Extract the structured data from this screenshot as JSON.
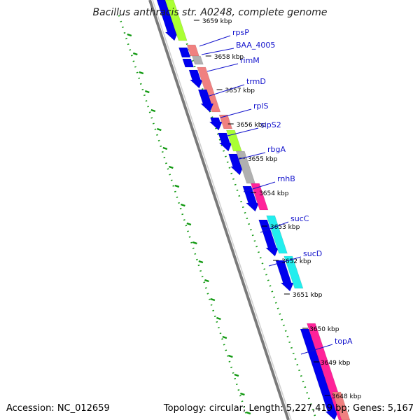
{
  "title": "Bacillus anthracis str. A0248, complete genome",
  "footer": {
    "accession": "Accession: NC_012659",
    "stats": "Topology: circular; Length: 5,227,419 bp; Genes: 5,167"
  },
  "colors": {
    "backbone": "#8c8c8c",
    "cds_reverse": "#0000ee",
    "rna": "#f08080",
    "pseudo": "#b0b0b0",
    "green_feature": "#aaff33",
    "magenta_feature": "#ff2299",
    "cyan_feature": "#22eeee",
    "label": "#1111cc",
    "gc_dots": "#119911"
  },
  "ticks": [
    "3659 kbp",
    "3658 kbp",
    "3657 kbp",
    "3656 kbp",
    "3655 kbp",
    "3654 kbp",
    "3653 kbp",
    "3652 kbp",
    "3651 kbp",
    "3650 kbp",
    "3649 kbp",
    "3648 kbp"
  ],
  "genes": [
    "rpsP",
    "BAA_4005",
    "rimM",
    "trmD",
    "rplS",
    "sipS2",
    "rbgA",
    "rnhB",
    "sucC",
    "sucD",
    "topA"
  ]
}
